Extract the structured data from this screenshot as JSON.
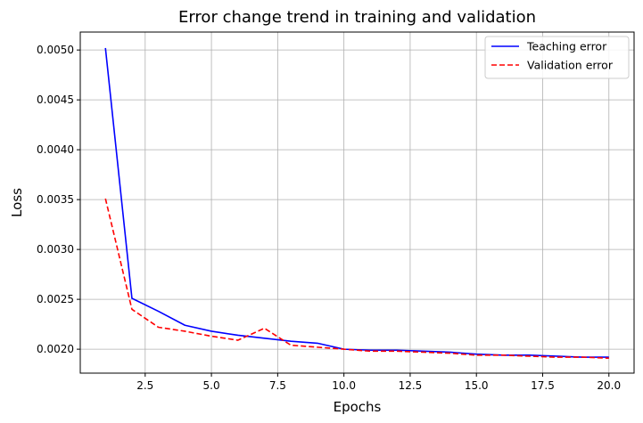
{
  "chart_data": {
    "type": "line",
    "title": "Error change trend in training and validation",
    "xlabel": "Epochs",
    "ylabel": "Loss",
    "xlim": [
      0.05,
      20.95
    ],
    "ylim": [
      0.00176,
      0.00518
    ],
    "xticks": [
      2.5,
      5.0,
      7.5,
      10.0,
      12.5,
      15.0,
      17.5,
      20.0
    ],
    "xtick_labels": [
      "2.5",
      "5.0",
      "7.5",
      "10.0",
      "12.5",
      "15.0",
      "17.5",
      "20.0"
    ],
    "yticks": [
      0.002,
      0.0025,
      0.003,
      0.0035,
      0.004,
      0.0045,
      0.005
    ],
    "ytick_labels": [
      "0.0020",
      "0.0025",
      "0.0030",
      "0.0035",
      "0.0040",
      "0.0045",
      "0.0050"
    ],
    "grid": true,
    "legend_position": "top-right",
    "x": [
      1,
      2,
      3,
      4,
      5,
      6,
      7,
      8,
      9,
      10,
      11,
      12,
      13,
      14,
      15,
      16,
      17,
      18,
      19,
      20
    ],
    "series": [
      {
        "name": "Teaching error",
        "color": "#0000ff",
        "style": "solid",
        "values": [
          0.00502,
          0.00251,
          0.00238,
          0.00224,
          0.00218,
          0.00214,
          0.00211,
          0.00208,
          0.00206,
          0.002,
          0.00199,
          0.00199,
          0.00198,
          0.00197,
          0.00195,
          0.00194,
          0.00194,
          0.00193,
          0.00192,
          0.00192
        ]
      },
      {
        "name": "Validation error",
        "color": "#ff0000",
        "style": "dashed",
        "values": [
          0.00351,
          0.0024,
          0.00222,
          0.00218,
          0.00213,
          0.00209,
          0.00221,
          0.00204,
          0.00202,
          0.002,
          0.00198,
          0.00198,
          0.00197,
          0.00196,
          0.00194,
          0.00194,
          0.00193,
          0.00192,
          0.00192,
          0.00191
        ]
      }
    ]
  }
}
